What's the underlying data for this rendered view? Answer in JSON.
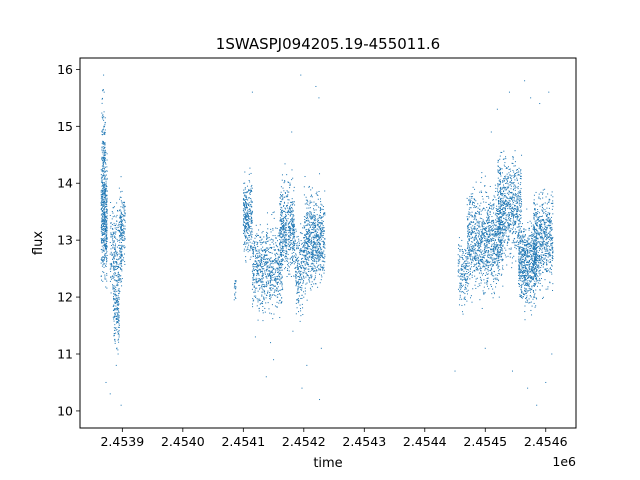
{
  "chart_data": {
    "type": "scatter",
    "title": "1SWASPJ094205.19-455011.6",
    "xlabel": "time",
    "ylabel": "flux",
    "x_offset_label": "1e6",
    "xlim": [
      2453830,
      2454650
    ],
    "ylim": [
      9.7,
      16.2
    ],
    "grid": false,
    "point_color": "#1f77b4",
    "x_ticks": [
      2453900,
      2454000,
      2454100,
      2454200,
      2454300,
      2454400,
      2454500,
      2454600
    ],
    "x_tick_labels": [
      "2.4539",
      "2.4540",
      "2.4541",
      "2.4542",
      "2.4543",
      "2.4544",
      "2.4545",
      "2.4546"
    ],
    "y_ticks": [
      10,
      11,
      12,
      13,
      14,
      15,
      16
    ],
    "y_tick_labels": [
      "10",
      "11",
      "12",
      "13",
      "14",
      "15",
      "16"
    ],
    "series": [
      {
        "clusters": [
          {
            "x_range": [
              2453865,
              2453875
            ],
            "y_center": 13.4,
            "y_spread": 0.7,
            "count": 500
          },
          {
            "x_range": [
              2453866,
              2453872
            ],
            "y_center": 14.6,
            "y_spread": 0.6,
            "count": 120
          },
          {
            "x_range": [
              2453880,
              2453900
            ],
            "y_center": 12.8,
            "y_spread": 0.5,
            "count": 250
          },
          {
            "x_range": [
              2453885,
              2453895
            ],
            "y_center": 11.8,
            "y_spread": 0.5,
            "count": 160
          },
          {
            "x_range": [
              2453895,
              2453905
            ],
            "y_center": 13.2,
            "y_spread": 0.45,
            "count": 150
          },
          {
            "x_range": [
              2454085,
              2454088
            ],
            "y_center": 12.2,
            "y_spread": 0.15,
            "count": 20
          },
          {
            "x_range": [
              2454100,
              2454115
            ],
            "y_center": 13.4,
            "y_spread": 0.45,
            "count": 300
          },
          {
            "x_range": [
              2454115,
              2454165
            ],
            "y_center": 12.5,
            "y_spread": 0.5,
            "count": 700
          },
          {
            "x_range": [
              2454160,
              2454185
            ],
            "y_center": 13.2,
            "y_spread": 0.55,
            "count": 500
          },
          {
            "x_range": [
              2454185,
              2454200
            ],
            "y_center": 12.5,
            "y_spread": 0.5,
            "count": 200
          },
          {
            "x_range": [
              2454200,
              2454235
            ],
            "y_center": 13.0,
            "y_spread": 0.55,
            "count": 700
          },
          {
            "x_range": [
              2454455,
              2454470
            ],
            "y_center": 12.4,
            "y_spread": 0.4,
            "count": 150
          },
          {
            "x_range": [
              2454470,
              2454530
            ],
            "y_center": 13.0,
            "y_spread": 0.6,
            "count": 1100
          },
          {
            "x_range": [
              2454520,
              2454560
            ],
            "y_center": 13.6,
            "y_spread": 0.6,
            "count": 700
          },
          {
            "x_range": [
              2454555,
              2454585
            ],
            "y_center": 12.6,
            "y_spread": 0.5,
            "count": 700
          },
          {
            "x_range": [
              2454580,
              2454612
            ],
            "y_center": 13.0,
            "y_spread": 0.55,
            "count": 600
          }
        ],
        "outliers": [
          [
            2453869,
            15.9
          ],
          [
            2453870,
            15.6
          ],
          [
            2453868,
            15.2
          ],
          [
            2453873,
            10.5
          ],
          [
            2453880,
            10.3
          ],
          [
            2453890,
            10.8
          ],
          [
            2453893,
            11.0
          ],
          [
            2453898,
            10.1
          ],
          [
            2454115,
            15.6
          ],
          [
            2454120,
            11.3
          ],
          [
            2454138,
            10.6
          ],
          [
            2454145,
            11.2
          ],
          [
            2454150,
            10.9
          ],
          [
            2454180,
            14.9
          ],
          [
            2454182,
            11.4
          ],
          [
            2454195,
            15.9
          ],
          [
            2454197,
            10.4
          ],
          [
            2454205,
            10.8
          ],
          [
            2454220,
            15.7
          ],
          [
            2454225,
            15.5
          ],
          [
            2454226,
            10.2
          ],
          [
            2454229,
            11.1
          ],
          [
            2454520,
            15.3
          ],
          [
            2454500,
            11.1
          ],
          [
            2454540,
            15.6
          ],
          [
            2454565,
            15.8
          ],
          [
            2454570,
            10.4
          ],
          [
            2454575,
            15.5
          ],
          [
            2454585,
            10.1
          ],
          [
            2454590,
            15.4
          ],
          [
            2454600,
            10.5
          ],
          [
            2454605,
            15.6
          ],
          [
            2454610,
            11.0
          ],
          [
            2454545,
            10.7
          ],
          [
            2454450,
            10.7
          ],
          [
            2454495,
            11.8
          ],
          [
            2454510,
            14.9
          ]
        ]
      }
    ]
  }
}
